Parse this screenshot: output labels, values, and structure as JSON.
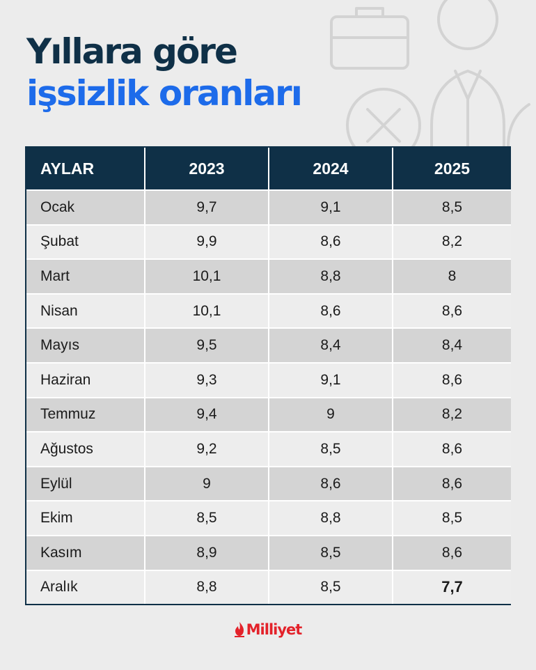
{
  "title": {
    "line1": "Yıllara göre",
    "line2": "işsizlik oranları"
  },
  "table": {
    "headers": [
      "AYLAR",
      "2023",
      "2024",
      "2025"
    ],
    "rows": [
      [
        "Ocak",
        "9,7",
        "9,1",
        "8,5"
      ],
      [
        "Şubat",
        "9,9",
        "8,6",
        "8,2"
      ],
      [
        "Mart",
        "10,1",
        "8,8",
        "8"
      ],
      [
        "Nisan",
        "10,1",
        "8,6",
        "8,6"
      ],
      [
        "Mayıs",
        "9,5",
        "8,4",
        "8,4"
      ],
      [
        "Haziran",
        "9,3",
        "9,1",
        "8,6"
      ],
      [
        "Temmuz",
        "9,4",
        "9",
        "8,2"
      ],
      [
        "Ağustos",
        "9,2",
        "8,5",
        "8,6"
      ],
      [
        "Eylül",
        "9",
        "8,6",
        "8,6"
      ],
      [
        "Ekim",
        "8,5",
        "8,8",
        "8,5"
      ],
      [
        "Kasım",
        "8,9",
        "8,5",
        "8,6"
      ],
      [
        "Aralık",
        "8,8",
        "8,5",
        "7,7"
      ]
    ],
    "emphasized_cell": {
      "row": 11,
      "col": 3
    }
  },
  "logo": {
    "text": "Milliyet",
    "icon": "flame-icon"
  },
  "colors": {
    "header_bg": "#0f3047",
    "title_dark": "#0f3047",
    "title_blue": "#1d6bea",
    "brand_red": "#e3222a",
    "row_dark": "#d4d4d4",
    "row_light": "#ededed"
  }
}
